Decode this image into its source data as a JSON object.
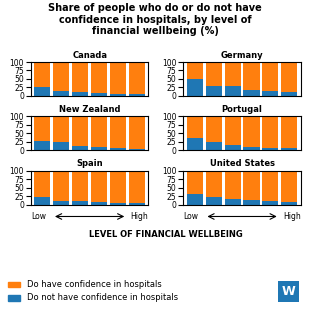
{
  "title": "Share of people who do or do not have\nconfidence in hospitals, by level of\nfinancial wellbeing (%)",
  "xlabel": "LEVEL OF FINANCIAL WELLBEING",
  "annotations": [
    "Low",
    "High",
    "W"
  ],
  "legend": "lower left",
  "chart_data": [
    {
      "type": "bar",
      "title": "Canada",
      "stacked": true,
      "tick_labels": "y",
      "categories": [
        null,
        null,
        null,
        null,
        null,
        null
      ],
      "series": [
        {
          "name": "Do not have confidence in hospitals",
          "color": "#1f77b4",
          "values": [
            25,
            14,
            12,
            9,
            7,
            5
          ]
        },
        {
          "name": "Do have confidence in hospitals",
          "color": "#ff7f0e",
          "values": [
            75,
            86,
            88,
            91,
            93,
            95
          ]
        }
      ],
      "ylim": [
        0,
        100
      ],
      "yticks": [
        0,
        25,
        50,
        75,
        100
      ]
    },
    {
      "type": "bar",
      "title": "Germany",
      "stacked": true,
      "tick_labels": "y",
      "categories": [
        null,
        null,
        null,
        null,
        null,
        null
      ],
      "series": [
        {
          "name": "Do not have confidence in hospitals",
          "color": "#1f77b4",
          "values": [
            50,
            30,
            30,
            18,
            15,
            13
          ]
        },
        {
          "name": "Do have confidence in hospitals",
          "color": "#ff7f0e",
          "values": [
            50,
            70,
            70,
            82,
            85,
            87
          ]
        }
      ],
      "ylim": [
        0,
        100
      ],
      "yticks": [
        0,
        25,
        50,
        75,
        100
      ]
    },
    {
      "type": "bar",
      "title": "New Zealand",
      "stacked": true,
      "tick_labels": "y",
      "categories": [
        null,
        null,
        null,
        null,
        null,
        null
      ],
      "series": [
        {
          "name": "Do not have confidence in hospitals",
          "color": "#1f77b4",
          "values": [
            28,
            23,
            13,
            9,
            7,
            5
          ]
        },
        {
          "name": "Do have confidence in hospitals",
          "color": "#ff7f0e",
          "values": [
            72,
            77,
            87,
            91,
            93,
            95
          ]
        }
      ],
      "ylim": [
        0,
        100
      ],
      "yticks": [
        0,
        25,
        50,
        75,
        100
      ]
    },
    {
      "type": "bar",
      "title": "Portugal",
      "stacked": true,
      "tick_labels": "y",
      "categories": [
        null,
        null,
        null,
        null,
        null,
        null
      ],
      "series": [
        {
          "name": "Do not have confidence in hospitals",
          "color": "#1f77b4",
          "values": [
            35,
            23,
            15,
            10,
            8,
            6
          ]
        },
        {
          "name": "Do have confidence in hospitals",
          "color": "#ff7f0e",
          "values": [
            65,
            77,
            85,
            90,
            92,
            94
          ]
        }
      ],
      "ylim": [
        0,
        100
      ],
      "yticks": [
        0,
        25,
        50,
        75,
        100
      ]
    },
    {
      "type": "bar",
      "title": "Spain",
      "stacked": true,
      "tick_labels": "y",
      "categories": [
        null,
        null,
        null,
        null,
        null,
        null
      ],
      "series": [
        {
          "name": "Do not have confidence in hospitals",
          "color": "#1f77b4",
          "values": [
            22,
            12,
            10,
            8,
            6,
            4
          ]
        },
        {
          "name": "Do have confidence in hospitals",
          "color": "#ff7f0e",
          "values": [
            78,
            88,
            90,
            92,
            94,
            96
          ]
        }
      ],
      "ylim": [
        0,
        100
      ],
      "yticks": [
        0,
        25,
        50,
        75,
        100
      ]
    },
    {
      "type": "bar",
      "title": "United States",
      "stacked": true,
      "tick_labels": "y",
      "categories": [
        null,
        null,
        null,
        null,
        null,
        null
      ],
      "series": [
        {
          "name": "Do not have confidence in hospitals",
          "color": "#1f77b4",
          "values": [
            32,
            23,
            17,
            15,
            12,
            9
          ]
        },
        {
          "name": "Do have confidence in hospitals",
          "color": "#ff7f0e",
          "values": [
            68,
            77,
            83,
            85,
            88,
            91
          ]
        }
      ],
      "ylim": [
        0,
        100
      ],
      "yticks": [
        0,
        25,
        50,
        75,
        100
      ]
    }
  ]
}
